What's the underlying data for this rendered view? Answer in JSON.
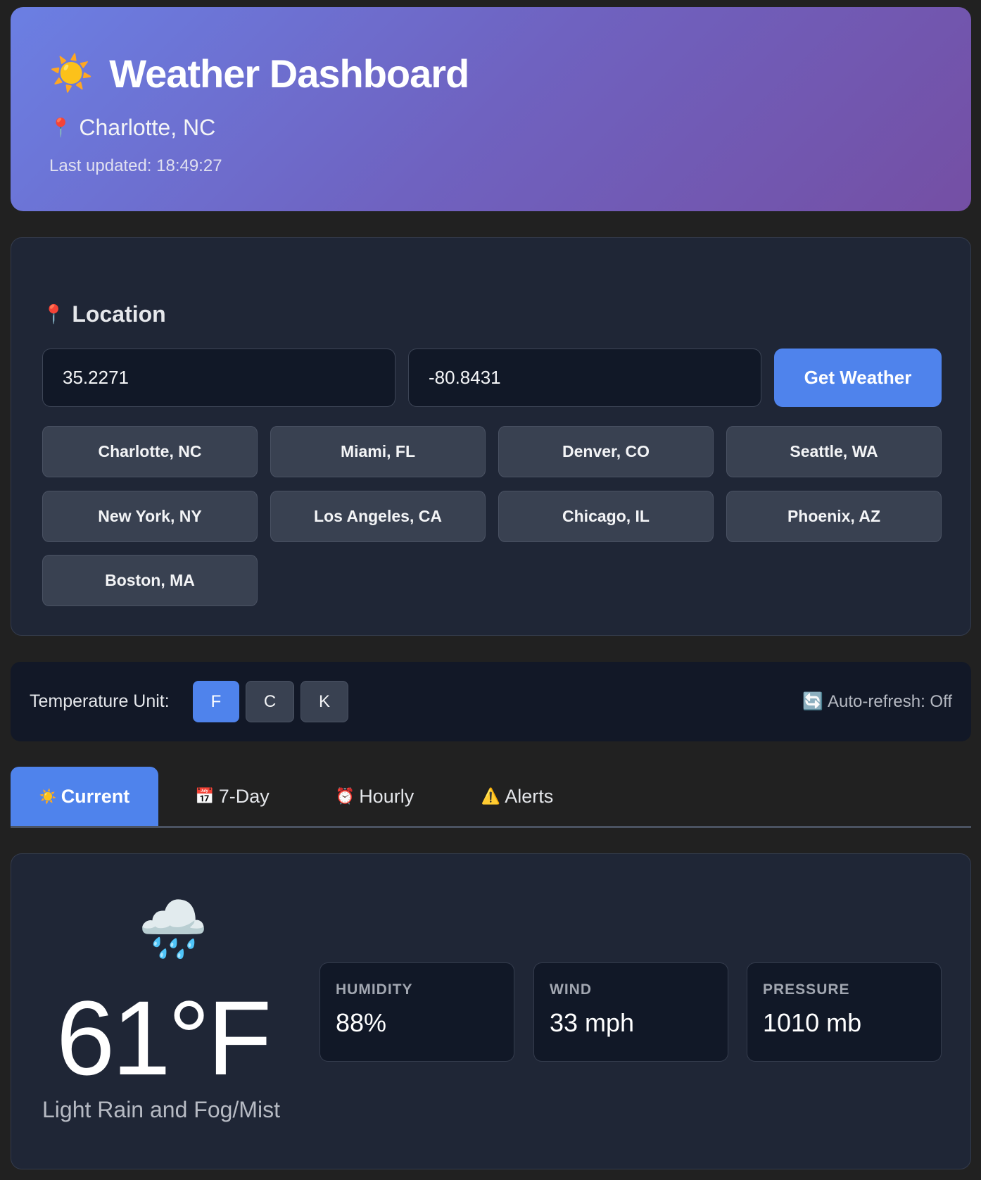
{
  "header": {
    "icon": "sun-icon",
    "title": "Weather Dashboard",
    "location_icon": "pin-icon",
    "location": "Charlotte, NC",
    "last_updated": "Last updated: 18:49:27"
  },
  "location_panel": {
    "title": "Location",
    "lat": "35.2271",
    "lon": "-80.8431",
    "get_weather": "Get Weather",
    "cities": [
      "Charlotte, NC",
      "Miami, FL",
      "Denver, CO",
      "Seattle, WA",
      "New York, NY",
      "Los Angeles, CA",
      "Chicago, IL",
      "Phoenix, AZ",
      "Boston, MA"
    ]
  },
  "units": {
    "label": "Temperature Unit:",
    "options": [
      "F",
      "C",
      "K"
    ],
    "selected": "F",
    "auto_refresh": "Auto-refresh: Off"
  },
  "tabs": [
    {
      "icon": "☀️",
      "label": "Current",
      "active": true
    },
    {
      "icon": "📅",
      "label": "7-Day"
    },
    {
      "icon": "⏰",
      "label": "Hourly"
    },
    {
      "icon": "⚠️",
      "label": "Alerts"
    }
  ],
  "current": {
    "icon": "rain-cloud-icon",
    "temp": "61°F",
    "description": "Light Rain and Fog/Mist",
    "stats": [
      {
        "label": "HUMIDITY",
        "value": "88%"
      },
      {
        "label": "WIND",
        "value": "33 mph"
      },
      {
        "label": "PRESSURE",
        "value": "1010 mb"
      }
    ]
  },
  "colors": {
    "accent": "#4f83ec",
    "header_start": "#6b7fe3",
    "header_end": "#744fa4",
    "background": "#212121",
    "card": "#1f2636"
  }
}
